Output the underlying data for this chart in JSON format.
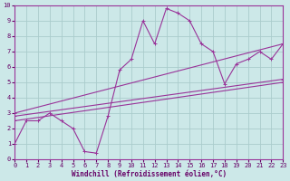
{
  "xlabel": "Windchill (Refroidissement éolien,°C)",
  "bg_color": "#cce8e8",
  "grid_color": "#aacccc",
  "line_color": "#993399",
  "spine_color": "#993399",
  "xlim": [
    0,
    23
  ],
  "ylim": [
    0,
    10
  ],
  "xticks": [
    0,
    1,
    2,
    3,
    4,
    5,
    6,
    7,
    8,
    9,
    10,
    11,
    12,
    13,
    14,
    15,
    16,
    17,
    18,
    19,
    20,
    21,
    22,
    23
  ],
  "yticks": [
    0,
    1,
    2,
    3,
    4,
    5,
    6,
    7,
    8,
    9,
    10
  ],
  "curve1_x": [
    0,
    1,
    2,
    3,
    4,
    5,
    6,
    7,
    8,
    9,
    10,
    11,
    12,
    13,
    14,
    15,
    16,
    17,
    18,
    19,
    20,
    21,
    22,
    23
  ],
  "curve1_y": [
    1.0,
    2.5,
    2.5,
    3.0,
    2.5,
    2.0,
    0.5,
    0.4,
    2.8,
    5.8,
    6.5,
    9.0,
    7.5,
    9.8,
    9.5,
    9.0,
    7.5,
    7.0,
    4.9,
    6.2,
    6.5,
    7.0,
    6.5,
    7.5
  ],
  "trend_lines": [
    {
      "x": [
        0,
        23
      ],
      "y": [
        2.5,
        5.0
      ]
    },
    {
      "x": [
        0,
        23
      ],
      "y": [
        2.8,
        5.2
      ]
    },
    {
      "x": [
        0,
        23
      ],
      "y": [
        3.0,
        7.5
      ]
    }
  ],
  "tick_fontsize": 5,
  "xlabel_fontsize": 5.5,
  "tick_color": "#660066"
}
